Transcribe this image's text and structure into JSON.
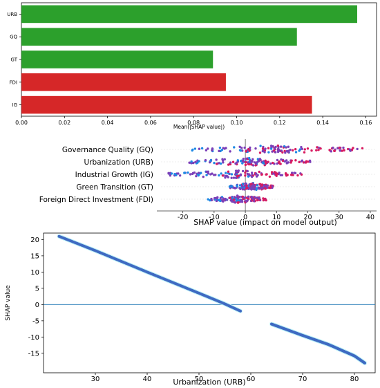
{
  "chart_data": [
    {
      "type": "bar",
      "orientation": "horizontal",
      "categories": [
        "URB",
        "GQ",
        "GT",
        "FDI",
        "IG"
      ],
      "values": [
        0.156,
        0.128,
        0.089,
        0.095,
        0.135
      ],
      "bar_colors": [
        "#2ca02c",
        "#2ca02c",
        "#2ca02c",
        "#d62728",
        "#d62728"
      ],
      "xlabel": "Mean(|SHAP value|)",
      "ylabel": "",
      "xlim": [
        0.0,
        0.165
      ],
      "xticks": [
        "0.00",
        "0.02",
        "0.04",
        "0.06",
        "0.08",
        "0.10",
        "0.12",
        "0.14",
        "0.16"
      ],
      "grid": false
    },
    {
      "type": "scatter",
      "subtype": "beeswarm",
      "features": [
        "Governance Quality (GQ)",
        "Urbanization (URB)",
        "Industrial Growth (IG)",
        "Green Transition (GT)",
        "Foreign Direct Investment (FDI)"
      ],
      "x_ranges": [
        [
          -17,
          38
        ],
        [
          -18,
          21
        ],
        [
          -25,
          19
        ],
        [
          -5,
          9
        ],
        [
          -12,
          7
        ]
      ],
      "point_colors": [
        "#1e88e5",
        "#7b3fb8",
        "#d81b60"
      ],
      "xlabel": "SHAP value (impact on model output)",
      "xlim": [
        -27,
        42
      ],
      "xticks": [
        "-20",
        "-10",
        "0",
        "10",
        "20",
        "30",
        "40"
      ]
    },
    {
      "type": "scatter",
      "subtype": "dependence",
      "series": [
        {
          "x": [
            23,
            30,
            40,
            50,
            55,
            58
          ],
          "y": [
            21,
            16.6,
            10,
            3.5,
            0.2,
            -2
          ]
        },
        {
          "x": [
            64,
            70,
            75,
            80,
            82
          ],
          "y": [
            -6,
            -9.5,
            -12.3,
            -15.8,
            -18
          ]
        }
      ],
      "point_color": "#3f6ac2",
      "xlabel": "Urbanization (URB)",
      "ylabel": "SHAP value",
      "xlim": [
        20,
        84
      ],
      "ylim": [
        -21,
        22
      ],
      "xticks": [
        "30",
        "40",
        "50",
        "60",
        "70",
        "80"
      ],
      "yticks": [
        "20",
        "15",
        "10",
        "5",
        "0",
        "-5",
        "-10",
        "-15"
      ],
      "hline": 0
    }
  ]
}
